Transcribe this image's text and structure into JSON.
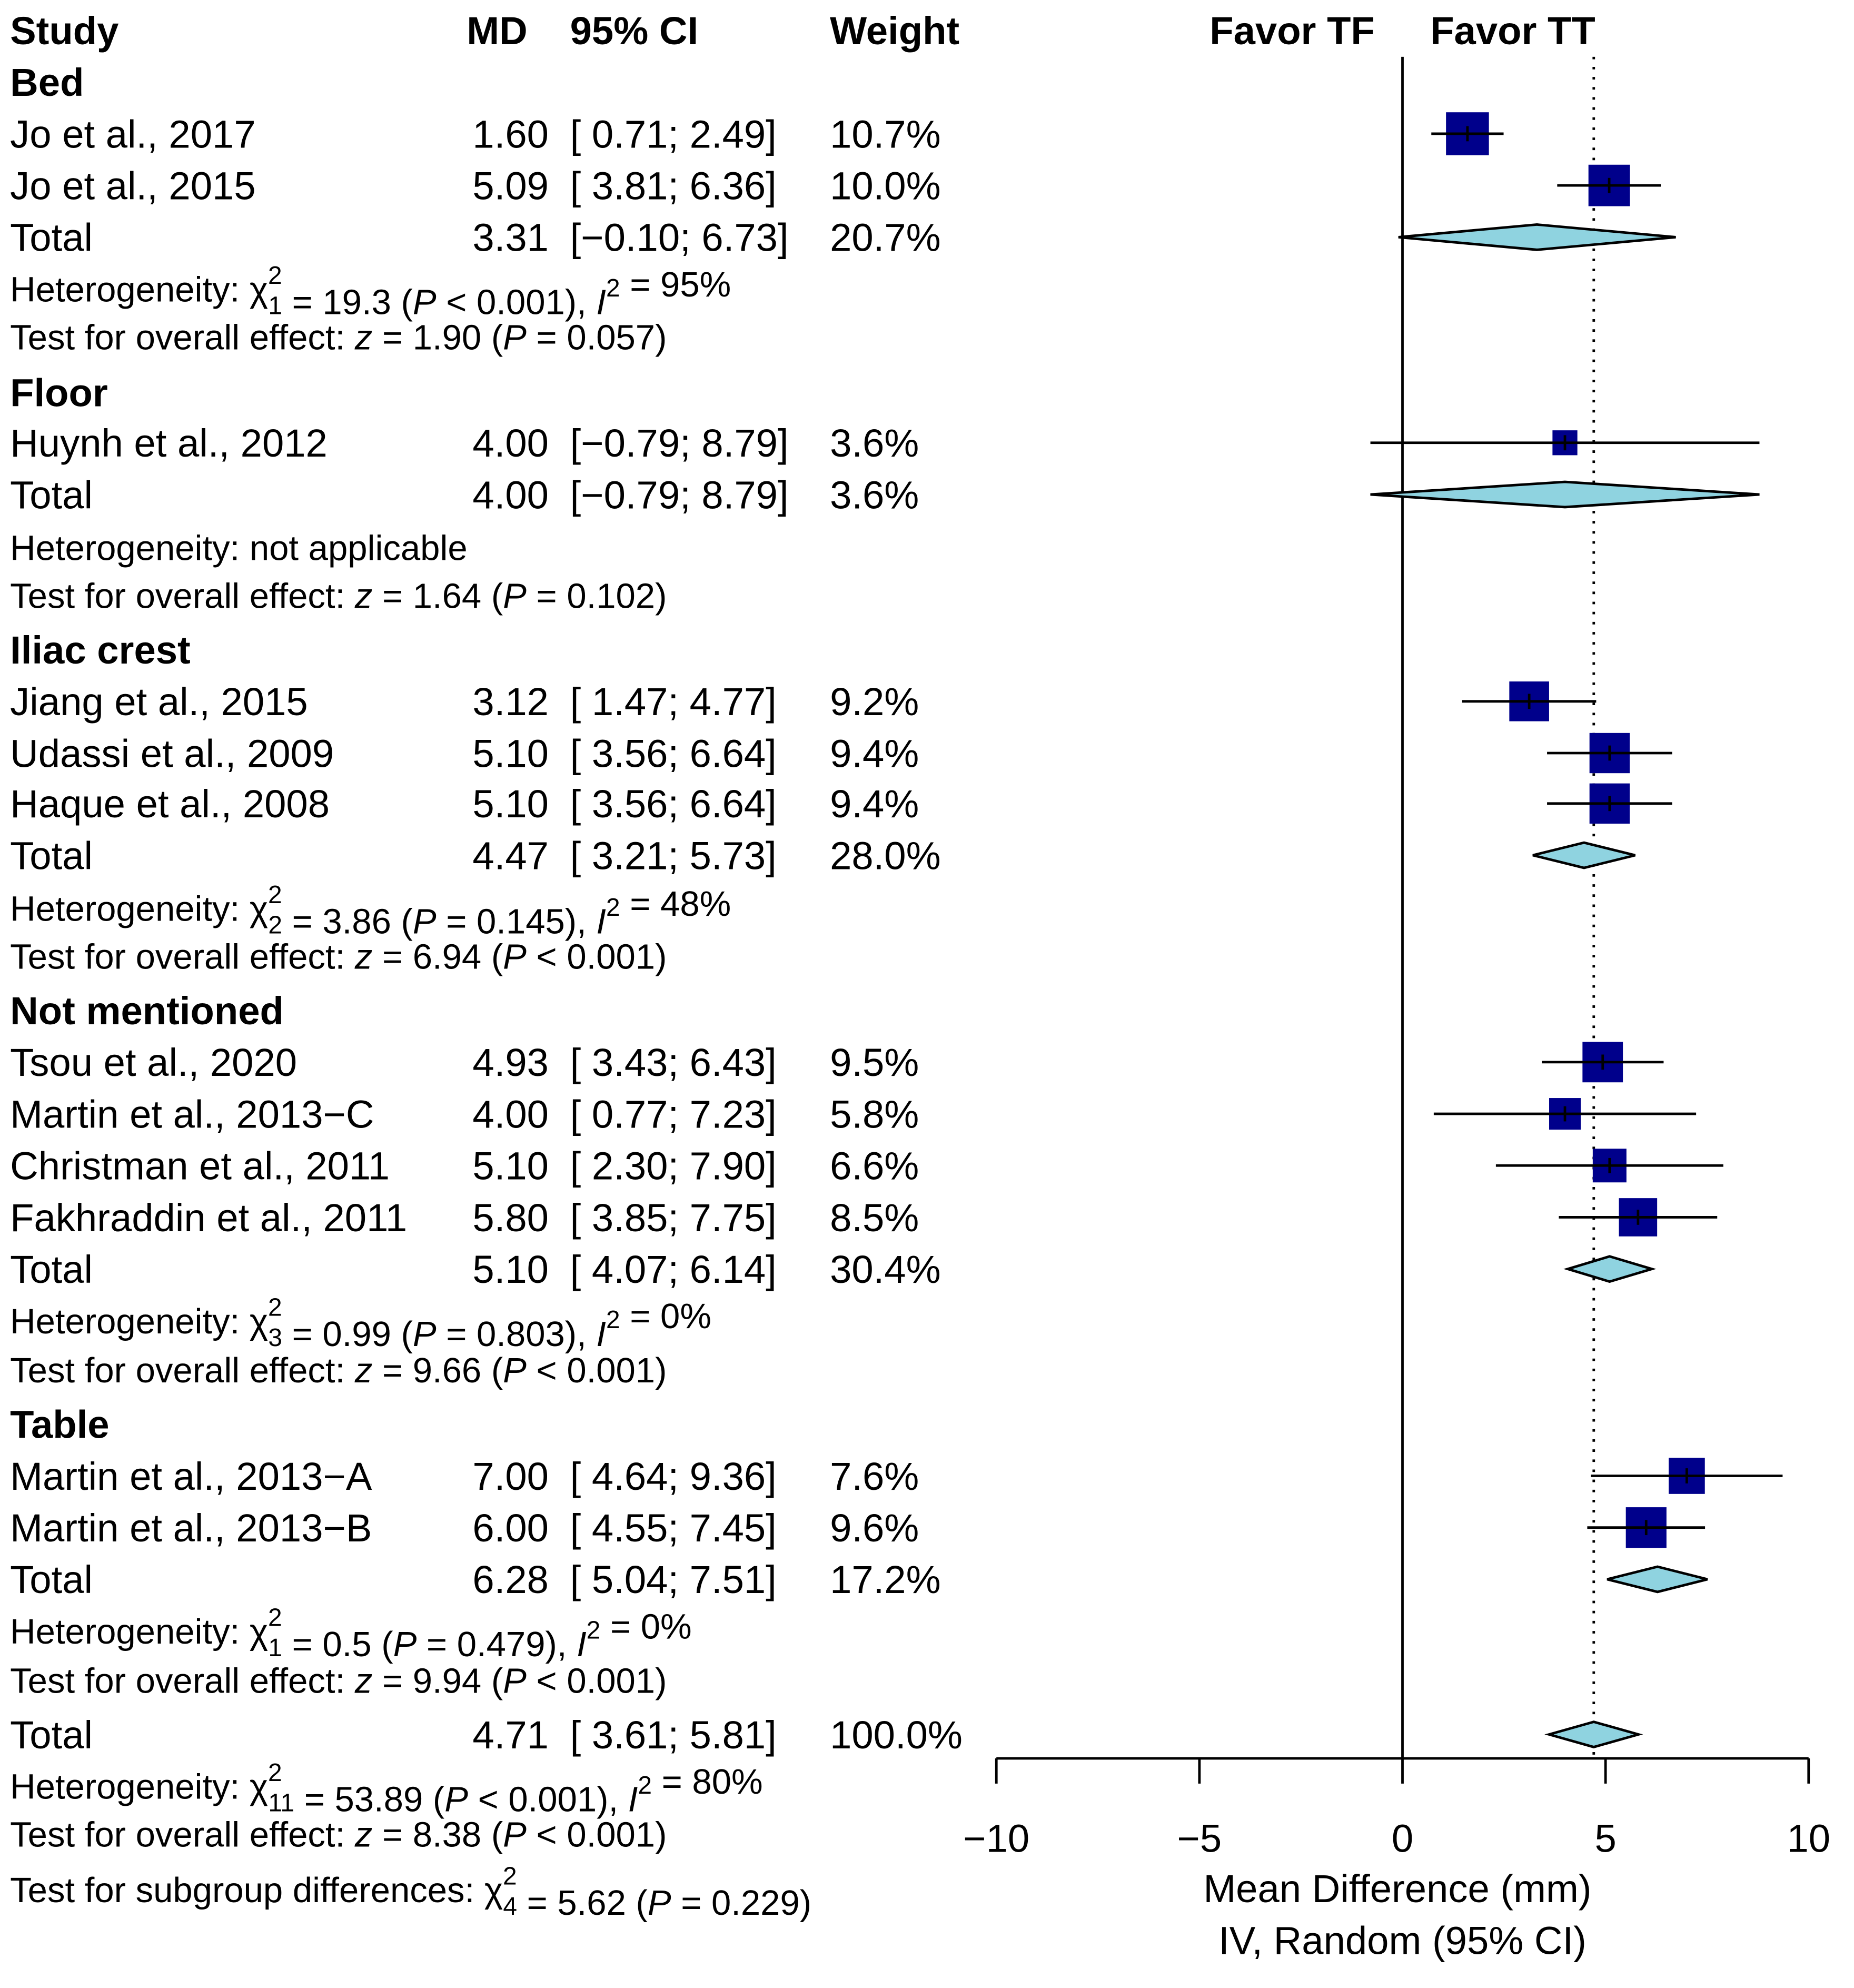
{
  "chart_data": {
    "type": "forest",
    "headers": {
      "study": "Study",
      "md": "MD",
      "ci": "95% CI",
      "weight": "Weight",
      "favor_left": "Favor TF",
      "favor_right": "Favor TT"
    },
    "xlabel": "Mean Difference (mm)",
    "xlabel2": "IV, Random (95% CI)",
    "xlim": [
      -10,
      10
    ],
    "xticks": [
      -10,
      -5,
      0,
      5,
      10
    ],
    "xtick_labels": [
      "−10",
      "−5",
      "0",
      "5",
      "10"
    ],
    "overall_estimate": 4.71,
    "colors": {
      "square": "#00008B",
      "diamond": "#8FD3E0",
      "line": "#000000"
    },
    "rows": [
      {
        "kind": "group",
        "label": "Bed"
      },
      {
        "kind": "study",
        "label": "Jo et al., 2017",
        "md": 1.6,
        "lo": 0.71,
        "hi": 2.49,
        "md_text": "1.60",
        "ci_text": "[ 0.71; 2.49]",
        "weight": 10.7,
        "weight_text": "10.7%"
      },
      {
        "kind": "study",
        "label": "Jo et al., 2015",
        "md": 5.09,
        "lo": 3.81,
        "hi": 6.36,
        "md_text": "5.09",
        "ci_text": "[ 3.81; 6.36]",
        "weight": 10.0,
        "weight_text": "10.0%"
      },
      {
        "kind": "total",
        "label": "Total",
        "md": 3.31,
        "lo": -0.1,
        "hi": 6.73,
        "md_text": "3.31",
        "ci_text": "[−0.10; 6.73]",
        "weight_text": "20.7%"
      },
      {
        "kind": "note",
        "segments": [
          {
            "t": "Heterogeneity: χ"
          },
          {
            "sup": "2",
            "sub": "1"
          },
          {
            "t": " = 19.3 ("
          },
          {
            "i": "P"
          },
          {
            "t": " < 0.001), "
          },
          {
            "i": "I"
          },
          {
            "sup": "2"
          },
          {
            "t": " = 95%"
          }
        ]
      },
      {
        "kind": "note",
        "segments": [
          {
            "t": "Test for overall effect: "
          },
          {
            "i": "z"
          },
          {
            "t": " = 1.90 ("
          },
          {
            "i": "P"
          },
          {
            "t": " = 0.057)"
          }
        ]
      },
      {
        "kind": "group",
        "label": "Floor"
      },
      {
        "kind": "study",
        "label": "Huynh et al., 2012",
        "md": 4.0,
        "lo": -0.79,
        "hi": 8.79,
        "md_text": "4.00",
        "ci_text": "[−0.79; 8.79]",
        "weight": 3.6,
        "weight_text": "3.6%"
      },
      {
        "kind": "total",
        "label": "Total",
        "md": 4.0,
        "lo": -0.79,
        "hi": 8.79,
        "md_text": "4.00",
        "ci_text": "[−0.79; 8.79]",
        "weight_text": "3.6%"
      },
      {
        "kind": "note",
        "segments": [
          {
            "t": "Heterogeneity: not applicable"
          }
        ]
      },
      {
        "kind": "note",
        "segments": [
          {
            "t": "Test for overall effect: "
          },
          {
            "i": "z"
          },
          {
            "t": " = 1.64 ("
          },
          {
            "i": "P"
          },
          {
            "t": " = 0.102)"
          }
        ]
      },
      {
        "kind": "group",
        "label": "Iliac crest"
      },
      {
        "kind": "study",
        "label": "Jiang et al., 2015",
        "md": 3.12,
        "lo": 1.47,
        "hi": 4.77,
        "md_text": "3.12",
        "ci_text": "[ 1.47; 4.77]",
        "weight": 9.2,
        "weight_text": "9.2%"
      },
      {
        "kind": "study",
        "label": "Udassi et al., 2009",
        "md": 5.1,
        "lo": 3.56,
        "hi": 6.64,
        "md_text": "5.10",
        "ci_text": "[ 3.56; 6.64]",
        "weight": 9.4,
        "weight_text": "9.4%"
      },
      {
        "kind": "study",
        "label": "Haque et al., 2008",
        "md": 5.1,
        "lo": 3.56,
        "hi": 6.64,
        "md_text": "5.10",
        "ci_text": "[ 3.56; 6.64]",
        "weight": 9.4,
        "weight_text": "9.4%"
      },
      {
        "kind": "total",
        "label": "Total",
        "md": 4.47,
        "lo": 3.21,
        "hi": 5.73,
        "md_text": "4.47",
        "ci_text": "[ 3.21; 5.73]",
        "weight_text": "28.0%"
      },
      {
        "kind": "note",
        "segments": [
          {
            "t": "Heterogeneity: χ"
          },
          {
            "sup": "2",
            "sub": "2"
          },
          {
            "t": " = 3.86 ("
          },
          {
            "i": "P"
          },
          {
            "t": " = 0.145), "
          },
          {
            "i": "I"
          },
          {
            "sup": "2"
          },
          {
            "t": " = 48%"
          }
        ]
      },
      {
        "kind": "note",
        "segments": [
          {
            "t": "Test for overall effect: "
          },
          {
            "i": "z"
          },
          {
            "t": " = 6.94 ("
          },
          {
            "i": "P"
          },
          {
            "t": " < 0.001)"
          }
        ]
      },
      {
        "kind": "group",
        "label": "Not mentioned"
      },
      {
        "kind": "study",
        "label": "Tsou et al., 2020",
        "md": 4.93,
        "lo": 3.43,
        "hi": 6.43,
        "md_text": "4.93",
        "ci_text": "[ 3.43; 6.43]",
        "weight": 9.5,
        "weight_text": "9.5%"
      },
      {
        "kind": "study",
        "label": "Martin et al., 2013−C",
        "md": 4.0,
        "lo": 0.77,
        "hi": 7.23,
        "md_text": "4.00",
        "ci_text": "[ 0.77; 7.23]",
        "weight": 5.8,
        "weight_text": "5.8%"
      },
      {
        "kind": "study",
        "label": "Christman et al., 2011",
        "md": 5.1,
        "lo": 2.3,
        "hi": 7.9,
        "md_text": "5.10",
        "ci_text": "[ 2.30; 7.90]",
        "weight": 6.6,
        "weight_text": "6.6%"
      },
      {
        "kind": "study",
        "label": "Fakhraddin et al., 2011",
        "md": 5.8,
        "lo": 3.85,
        "hi": 7.75,
        "md_text": "5.80",
        "ci_text": "[ 3.85; 7.75]",
        "weight": 8.5,
        "weight_text": "8.5%"
      },
      {
        "kind": "total",
        "label": "Total",
        "md": 5.1,
        "lo": 4.07,
        "hi": 6.14,
        "md_text": "5.10",
        "ci_text": "[ 4.07; 6.14]",
        "weight_text": "30.4%"
      },
      {
        "kind": "note",
        "segments": [
          {
            "t": "Heterogeneity: χ"
          },
          {
            "sup": "2",
            "sub": "3"
          },
          {
            "t": " = 0.99 ("
          },
          {
            "i": "P"
          },
          {
            "t": " = 0.803), "
          },
          {
            "i": "I"
          },
          {
            "sup": "2"
          },
          {
            "t": " = 0%"
          }
        ]
      },
      {
        "kind": "note",
        "segments": [
          {
            "t": "Test for overall effect: "
          },
          {
            "i": "z"
          },
          {
            "t": " = 9.66 ("
          },
          {
            "i": "P"
          },
          {
            "t": " < 0.001)"
          }
        ]
      },
      {
        "kind": "group",
        "label": "Table"
      },
      {
        "kind": "study",
        "label": "Martin et al., 2013−A",
        "md": 7.0,
        "lo": 4.64,
        "hi": 9.36,
        "md_text": "7.00",
        "ci_text": "[ 4.64; 9.36]",
        "weight": 7.6,
        "weight_text": "7.6%"
      },
      {
        "kind": "study",
        "label": "Martin et al., 2013−B",
        "md": 6.0,
        "lo": 4.55,
        "hi": 7.45,
        "md_text": "6.00",
        "ci_text": "[ 4.55; 7.45]",
        "weight": 9.6,
        "weight_text": "9.6%"
      },
      {
        "kind": "total",
        "label": "Total",
        "md": 6.28,
        "lo": 5.04,
        "hi": 7.51,
        "md_text": "6.28",
        "ci_text": "[ 5.04; 7.51]",
        "weight_text": "17.2%"
      },
      {
        "kind": "note",
        "segments": [
          {
            "t": "Heterogeneity: χ"
          },
          {
            "sup": "2",
            "sub": "1"
          },
          {
            "t": " = 0.5 ("
          },
          {
            "i": "P"
          },
          {
            "t": " = 0.479), "
          },
          {
            "i": "I"
          },
          {
            "sup": "2"
          },
          {
            "t": " = 0%"
          }
        ]
      },
      {
        "kind": "note",
        "segments": [
          {
            "t": "Test for overall effect: "
          },
          {
            "i": "z"
          },
          {
            "t": " = 9.94 ("
          },
          {
            "i": "P"
          },
          {
            "t": " < 0.001)"
          }
        ]
      },
      {
        "kind": "total",
        "label": "Total",
        "md": 4.71,
        "lo": 3.61,
        "hi": 5.81,
        "md_text": "4.71",
        "ci_text": "[ 3.61; 5.81]",
        "weight_text": "100.0%"
      },
      {
        "kind": "note",
        "segments": [
          {
            "t": "Heterogeneity: χ"
          },
          {
            "sup": "2",
            "sub": "11"
          },
          {
            "t": " = 53.89 ("
          },
          {
            "i": "P"
          },
          {
            "t": " < 0.001), "
          },
          {
            "i": "I"
          },
          {
            "sup": "2"
          },
          {
            "t": " = 80%"
          }
        ]
      },
      {
        "kind": "note",
        "segments": [
          {
            "t": "Test for overall effect: "
          },
          {
            "i": "z"
          },
          {
            "t": " = 8.38 ("
          },
          {
            "i": "P"
          },
          {
            "t": " < 0.001)"
          }
        ]
      },
      {
        "kind": "note",
        "segments": [
          {
            "t": "Test for subgroup differences: χ"
          },
          {
            "sup": "2",
            "sub": "4"
          },
          {
            "t": " = 5.62 ("
          },
          {
            "i": "P"
          },
          {
            "t": " = 0.229)"
          }
        ]
      }
    ]
  }
}
